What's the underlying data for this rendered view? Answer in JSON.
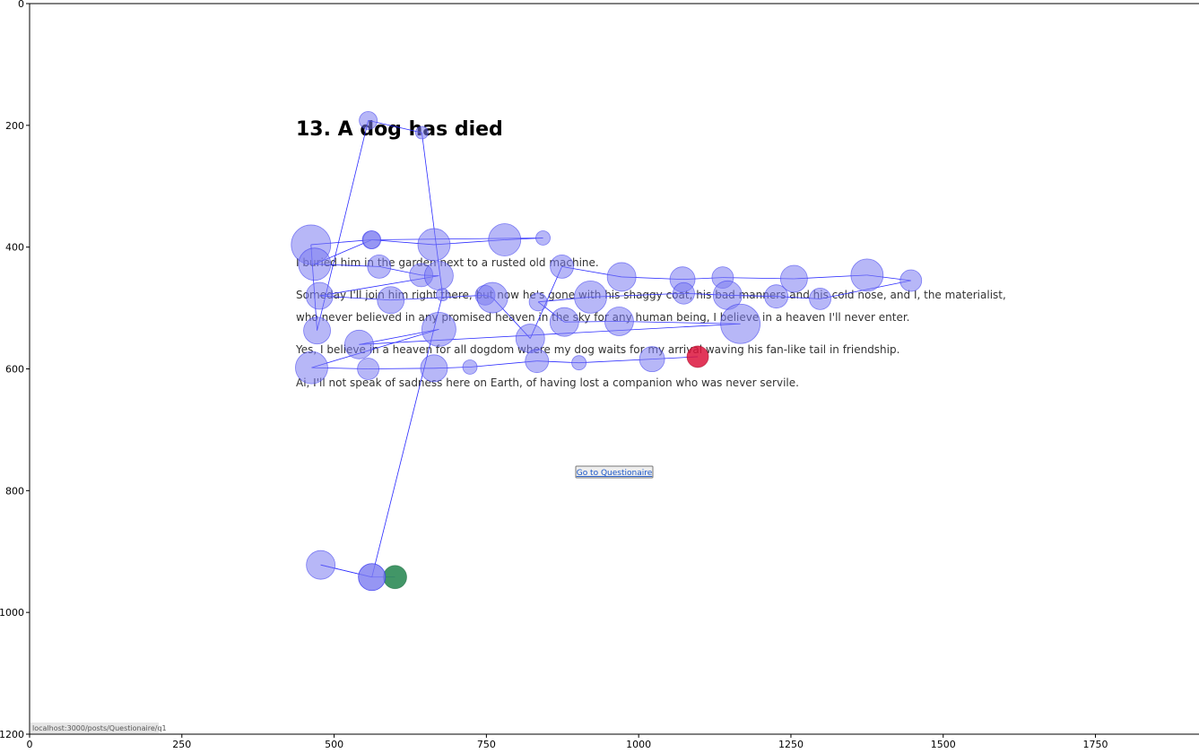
{
  "chart_data": {
    "type": "scatter",
    "subtype": "eye-tracking gaze plot overlaid on webpage screenshot",
    "xlim": [
      0,
      1920
    ],
    "ylim": [
      1200,
      0
    ],
    "y_inverted": true,
    "x_ticks": [
      0,
      250,
      500,
      750,
      1000,
      1250,
      1500,
      1750
    ],
    "y_ticks": [
      0,
      200,
      400,
      600,
      800,
      1000,
      1200
    ],
    "grid": false,
    "colors": {
      "fixation_fill": "#7b7bf0",
      "fixation_stroke": "#3a3af0",
      "scanpath": "#2b2bff",
      "start_point": "#2e8b57",
      "end_point": "#dc143c",
      "page_text": "#333333",
      "heading_text": "#000000",
      "link_text": "#1a56c8",
      "status_bg": "#e6e6e6"
    },
    "webpage": {
      "heading": "13. A dog has died",
      "paragraphs": [
        "I buried him in the garden next to a rusted old machine.",
        "Someday I'll join him right there, but now he's gone with his shaggy coat, his bad manners and his cold nose, and I, the materialist,",
        "who never believed in any promised heaven in the sky for any human being, I believe in a heaven I'll never enter.",
        "Yes, I believe in a heaven for all dogdom where my dog waits for my arrival waving his fan-like tail in friendship.",
        "Ai, I'll not speak of sadness here on Earth, of having lost a companion who was never servile."
      ],
      "button_label": "Go to Questionaire",
      "status_url": "localhost:3000/posts/Questionaire/q1"
    },
    "fixations": [
      {
        "x": 600,
        "y": 942,
        "r": 13,
        "role": "start"
      },
      {
        "x": 562,
        "y": 942,
        "r": 15
      },
      {
        "x": 478,
        "y": 922,
        "r": 16
      },
      {
        "x": 562,
        "y": 942,
        "r": 15
      },
      {
        "x": 678,
        "y": 478,
        "r": 7
      },
      {
        "x": 644,
        "y": 212,
        "r": 7
      },
      {
        "x": 556,
        "y": 192,
        "r": 10
      },
      {
        "x": 472,
        "y": 537,
        "r": 15
      },
      {
        "x": 462,
        "y": 396,
        "r": 22
      },
      {
        "x": 561,
        "y": 388,
        "r": 10
      },
      {
        "x": 664,
        "y": 396,
        "r": 18
      },
      {
        "x": 780,
        "y": 388,
        "r": 18
      },
      {
        "x": 843,
        "y": 385,
        "r": 8
      },
      {
        "x": 562,
        "y": 388,
        "r": 10
      },
      {
        "x": 468,
        "y": 428,
        "r": 18
      },
      {
        "x": 574,
        "y": 432,
        "r": 13
      },
      {
        "x": 643,
        "y": 446,
        "r": 13
      },
      {
        "x": 672,
        "y": 447,
        "r": 16
      },
      {
        "x": 476,
        "y": 480,
        "r": 15
      },
      {
        "x": 593,
        "y": 487,
        "r": 15
      },
      {
        "x": 748,
        "y": 479,
        "r": 11
      },
      {
        "x": 760,
        "y": 483,
        "r": 17
      },
      {
        "x": 822,
        "y": 550,
        "r": 16
      },
      {
        "x": 874,
        "y": 432,
        "r": 13
      },
      {
        "x": 972,
        "y": 449,
        "r": 16
      },
      {
        "x": 1072,
        "y": 453,
        "r": 14
      },
      {
        "x": 1138,
        "y": 450,
        "r": 12
      },
      {
        "x": 1255,
        "y": 452,
        "r": 15
      },
      {
        "x": 1375,
        "y": 446,
        "r": 18
      },
      {
        "x": 1447,
        "y": 455,
        "r": 12
      },
      {
        "x": 1298,
        "y": 485,
        "r": 12
      },
      {
        "x": 1226,
        "y": 481,
        "r": 13
      },
      {
        "x": 1146,
        "y": 479,
        "r": 16
      },
      {
        "x": 1074,
        "y": 476,
        "r": 12
      },
      {
        "x": 921,
        "y": 482,
        "r": 18
      },
      {
        "x": 835,
        "y": 490,
        "r": 10
      },
      {
        "x": 878,
        "y": 523,
        "r": 16
      },
      {
        "x": 968,
        "y": 522,
        "r": 16
      },
      {
        "x": 1167,
        "y": 526,
        "r": 22
      },
      {
        "x": 541,
        "y": 560,
        "r": 16
      },
      {
        "x": 672,
        "y": 535,
        "r": 19
      },
      {
        "x": 463,
        "y": 598,
        "r": 18
      },
      {
        "x": 556,
        "y": 600,
        "r": 12
      },
      {
        "x": 664,
        "y": 599,
        "r": 15
      },
      {
        "x": 723,
        "y": 597,
        "r": 8
      },
      {
        "x": 833,
        "y": 587,
        "r": 13
      },
      {
        "x": 902,
        "y": 590,
        "r": 8
      },
      {
        "x": 1022,
        "y": 584,
        "r": 14
      },
      {
        "x": 1097,
        "y": 580,
        "r": 12,
        "role": "end"
      }
    ]
  }
}
